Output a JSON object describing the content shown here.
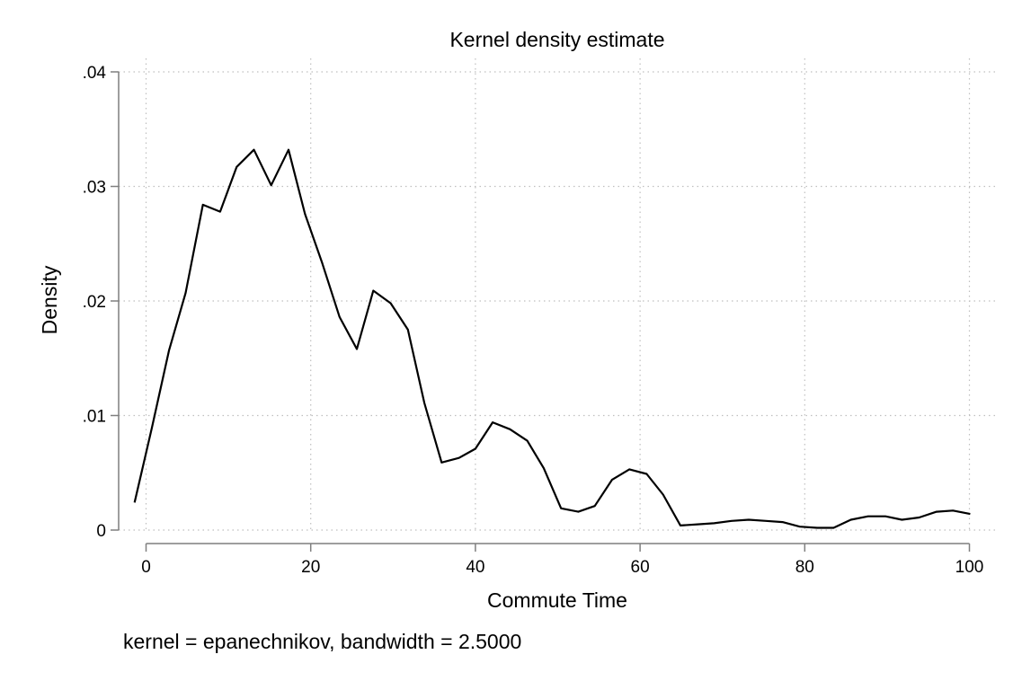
{
  "chart_data": {
    "type": "line",
    "title": "Kernel density estimate",
    "xlabel": "Commute Time",
    "ylabel": "Density",
    "note": "kernel = epanechnikov, bandwidth = 2.5000",
    "xlim": [
      -2,
      101.5
    ],
    "ylim": [
      0,
      0.04
    ],
    "xticks": [
      0,
      20,
      40,
      60,
      80,
      100
    ],
    "xtick_labels": [
      "0",
      "20",
      "40",
      "60",
      "80",
      "100"
    ],
    "yticks": [
      0,
      0.01,
      0.02,
      0.03,
      0.04
    ],
    "ytick_labels": [
      "0",
      ".01",
      ".02",
      ".03",
      ".04"
    ],
    "grid": true,
    "legend": false,
    "line_color": "#000000",
    "series": [
      {
        "x": [
          -1.4,
          0.7,
          2.8,
          4.8,
          6.9,
          9.0,
          11.0,
          13.1,
          15.2,
          17.3,
          19.3,
          21.4,
          23.5,
          25.6,
          27.6,
          29.7,
          31.8,
          33.8,
          35.9,
          38.0,
          40.0,
          42.1,
          44.2,
          46.3,
          48.3,
          50.4,
          52.5,
          54.5,
          56.6,
          58.7,
          60.8,
          62.8,
          64.9,
          67.0,
          69.0,
          71.1,
          73.2,
          75.3,
          77.3,
          79.4,
          81.5,
          83.5,
          85.6,
          87.7,
          89.8,
          91.8,
          93.9,
          96.0,
          98.0,
          100.1
        ],
        "y": [
          0.0024,
          0.0089,
          0.0157,
          0.0207,
          0.0284,
          0.0278,
          0.0317,
          0.0332,
          0.0301,
          0.0332,
          0.0276,
          0.0233,
          0.0186,
          0.0158,
          0.0209,
          0.0198,
          0.0175,
          0.0111,
          0.0059,
          0.0063,
          0.0071,
          0.0094,
          0.0088,
          0.0078,
          0.0054,
          0.0019,
          0.0016,
          0.0021,
          0.0044,
          0.0053,
          0.0049,
          0.0031,
          0.0004,
          0.0005,
          0.0006,
          0.0008,
          0.0009,
          0.0008,
          0.0007,
          0.0003,
          0.0002,
          0.0002,
          0.0009,
          0.0012,
          0.0012,
          0.0009,
          0.0011,
          0.0016,
          0.0017,
          0.0014
        ]
      }
    ]
  }
}
